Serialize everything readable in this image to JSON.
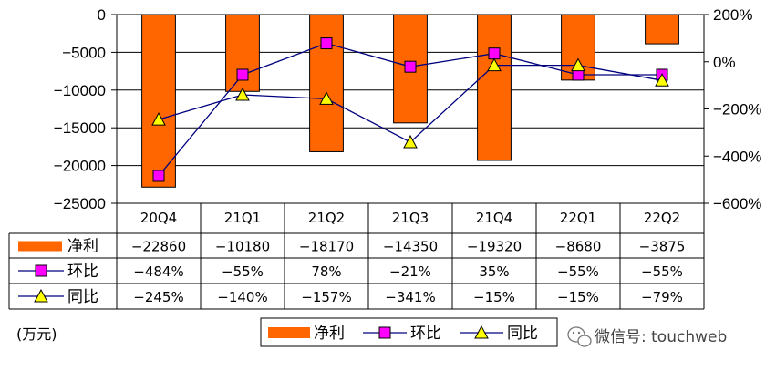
{
  "chart_data": {
    "type": "bar",
    "categories": [
      "20Q4",
      "21Q1",
      "21Q2",
      "21Q3",
      "21Q4",
      "22Q1",
      "22Q2"
    ],
    "series": [
      {
        "name": "净利",
        "kind": "bar",
        "axis": "left",
        "color": "#FF6600",
        "values": [
          -22860,
          -10180,
          -18170,
          -14350,
          -19320,
          -8680,
          -3875
        ],
        "display": [
          "−22860",
          "−10180",
          "−18170",
          "−14350",
          "−19320",
          "−8680",
          "−3875"
        ]
      },
      {
        "name": "环比",
        "kind": "line",
        "axis": "right",
        "marker": "square",
        "color": "#FF00FF",
        "values": [
          -484,
          -55,
          78,
          -21,
          35,
          -55,
          -55
        ],
        "display": [
          "−484%",
          "−55%",
          "78%",
          "−21%",
          "35%",
          "−55%",
          "−55%"
        ]
      },
      {
        "name": "同比",
        "kind": "line",
        "axis": "right",
        "marker": "triangle",
        "color": "#FFFF00",
        "values": [
          -245,
          -140,
          -157,
          -341,
          -15,
          -15,
          -79
        ],
        "display": [
          "−245%",
          "−140%",
          "−157%",
          "−341%",
          "−15%",
          "−15%",
          "−79%"
        ]
      }
    ],
    "left_axis": {
      "min": -25000,
      "max": 0,
      "ticks": [
        0,
        -5000,
        -10000,
        -15000,
        -20000,
        -25000
      ],
      "tick_labels": [
        "0",
        "−5000",
        "−10000",
        "−15000",
        "−20000",
        "−25000"
      ]
    },
    "right_axis": {
      "min": -600,
      "max": 200,
      "ticks": [
        200,
        0,
        -200,
        -400,
        -600
      ],
      "tick_labels": [
        "200%",
        "0%",
        "−200%",
        "−400%",
        "−600%"
      ]
    },
    "unit_label": "(万元)",
    "grid": true,
    "legend_position": "bottom",
    "data_table": true
  },
  "watermark": "微信号: touchweb"
}
